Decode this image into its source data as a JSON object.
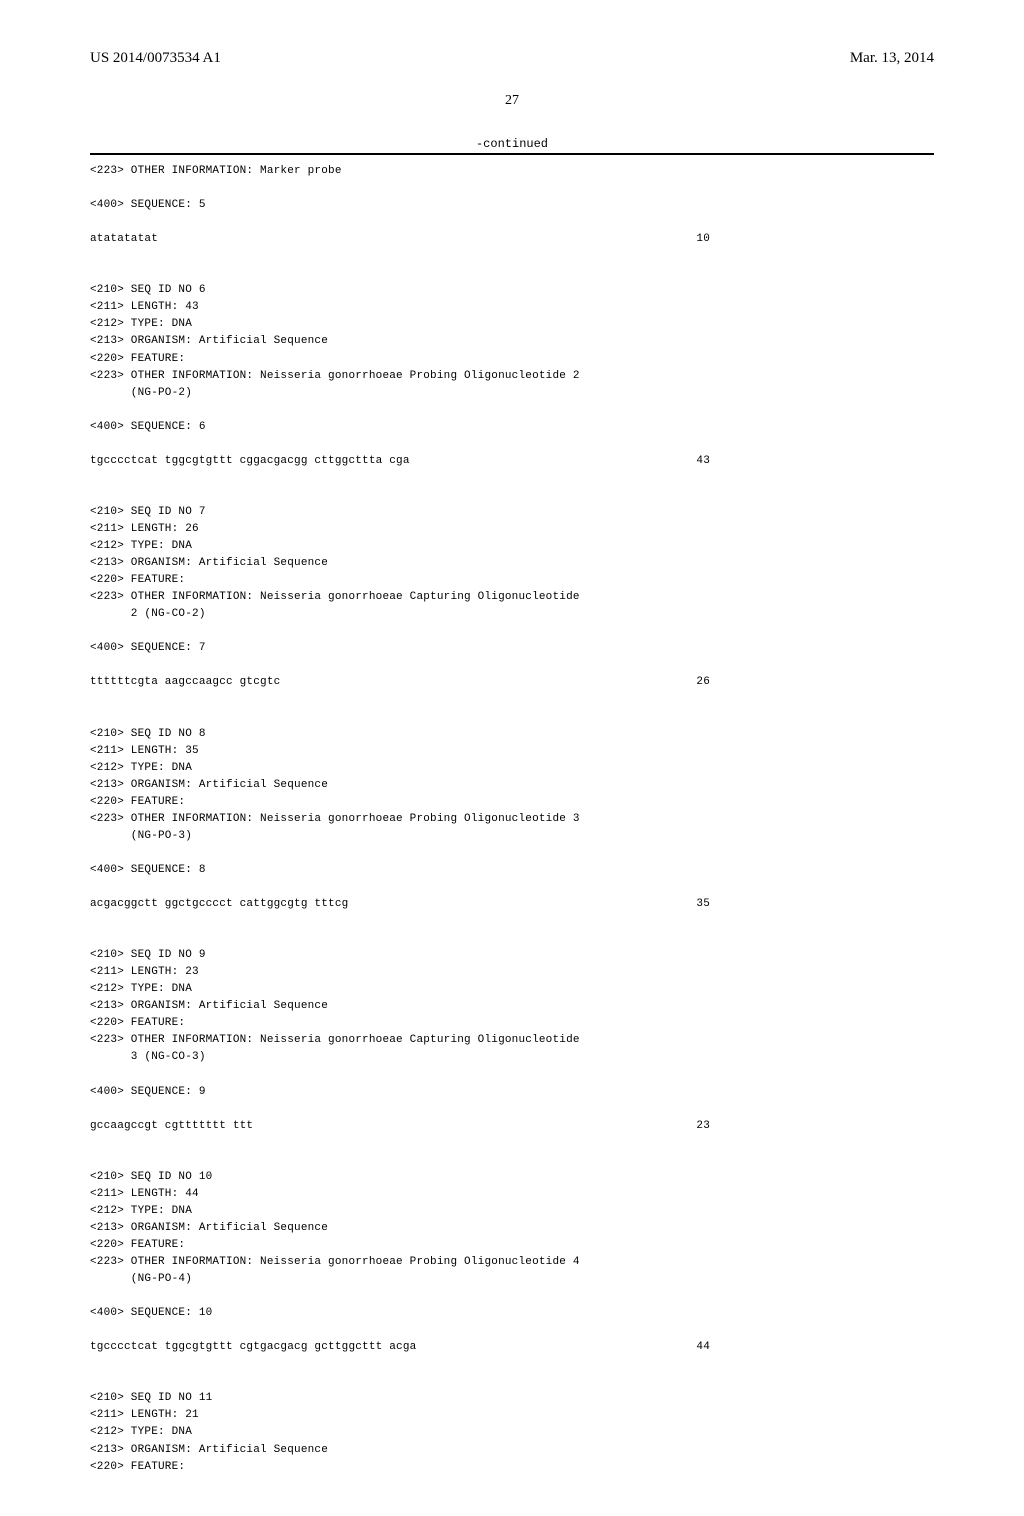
{
  "header": {
    "pub_number": "US 2014/0073534 A1",
    "date": "Mar. 13, 2014"
  },
  "page_number": "27",
  "continued_label": "-continued",
  "blocks": [
    {
      "lines": [
        "<223> OTHER INFORMATION: Marker probe",
        "",
        "<400> SEQUENCE: 5"
      ]
    },
    {
      "seq": "atatatatat",
      "num": "10"
    },
    {
      "lines": [
        "",
        "",
        "<210> SEQ ID NO 6",
        "<211> LENGTH: 43",
        "<212> TYPE: DNA",
        "<213> ORGANISM: Artificial Sequence",
        "<220> FEATURE:",
        "<223> OTHER INFORMATION: Neisseria gonorrhoeae Probing Oligonucleotide 2",
        "      (NG-PO-2)",
        "",
        "<400> SEQUENCE: 6"
      ]
    },
    {
      "seq": "tgcccctcat tggcgtgttt cggacgacgg cttggcttta cga",
      "num": "43"
    },
    {
      "lines": [
        "",
        "",
        "<210> SEQ ID NO 7",
        "<211> LENGTH: 26",
        "<212> TYPE: DNA",
        "<213> ORGANISM: Artificial Sequence",
        "<220> FEATURE:",
        "<223> OTHER INFORMATION: Neisseria gonorrhoeae Capturing Oligonucleotide",
        "      2 (NG-CO-2)",
        "",
        "<400> SEQUENCE: 7"
      ]
    },
    {
      "seq": "ttttttcgta aagccaagcc gtcgtc",
      "num": "26"
    },
    {
      "lines": [
        "",
        "",
        "<210> SEQ ID NO 8",
        "<211> LENGTH: 35",
        "<212> TYPE: DNA",
        "<213> ORGANISM: Artificial Sequence",
        "<220> FEATURE:",
        "<223> OTHER INFORMATION: Neisseria gonorrhoeae Probing Oligonucleotide 3",
        "      (NG-PO-3)",
        "",
        "<400> SEQUENCE: 8"
      ]
    },
    {
      "seq": "acgacggctt ggctgcccct cattggcgtg tttcg",
      "num": "35"
    },
    {
      "lines": [
        "",
        "",
        "<210> SEQ ID NO 9",
        "<211> LENGTH: 23",
        "<212> TYPE: DNA",
        "<213> ORGANISM: Artificial Sequence",
        "<220> FEATURE:",
        "<223> OTHER INFORMATION: Neisseria gonorrhoeae Capturing Oligonucleotide",
        "      3 (NG-CO-3)",
        "",
        "<400> SEQUENCE: 9"
      ]
    },
    {
      "seq": "gccaagccgt cgttttttt ttt",
      "num": "23"
    },
    {
      "lines": [
        "",
        "",
        "<210> SEQ ID NO 10",
        "<211> LENGTH: 44",
        "<212> TYPE: DNA",
        "<213> ORGANISM: Artificial Sequence",
        "<220> FEATURE:",
        "<223> OTHER INFORMATION: Neisseria gonorrhoeae Probing Oligonucleotide 4",
        "      (NG-PO-4)",
        "",
        "<400> SEQUENCE: 10"
      ]
    },
    {
      "seq": "tgcccctcat tggcgtgttt cgtgacgacg gcttggcttt acga",
      "num": "44"
    },
    {
      "lines": [
        "",
        "",
        "<210> SEQ ID NO 11",
        "<211> LENGTH: 21",
        "<212> TYPE: DNA",
        "<213> ORGANISM: Artificial Sequence",
        "<220> FEATURE:"
      ]
    }
  ]
}
